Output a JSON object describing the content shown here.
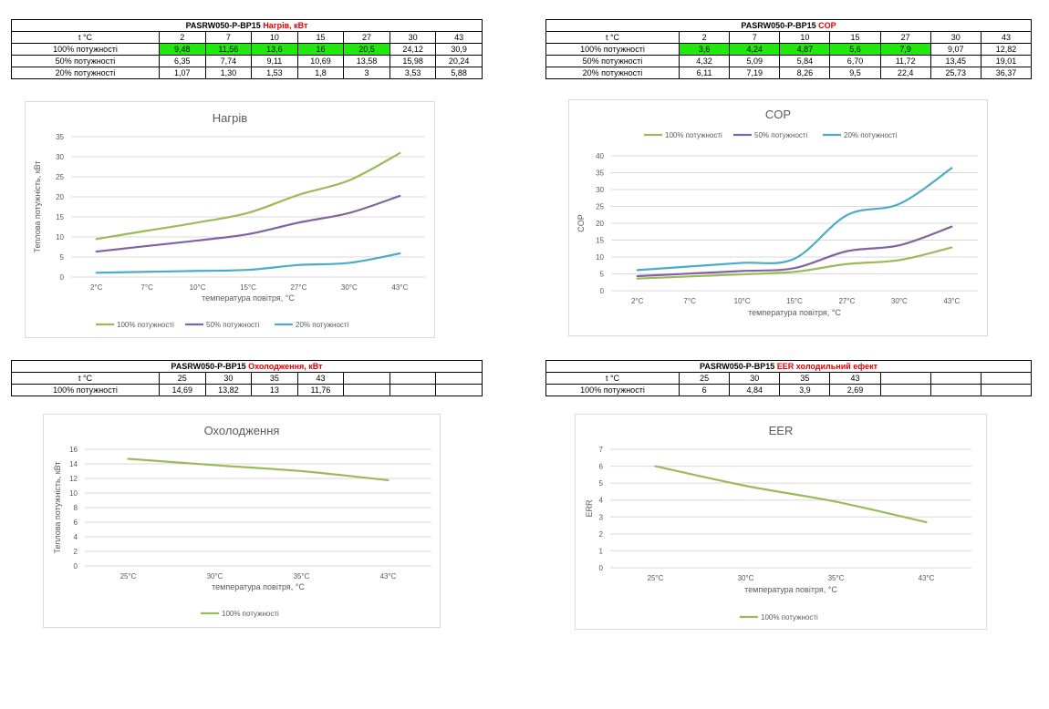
{
  "tables": [
    {
      "model": "PASRW050-P-BP15",
      "metric": "Нагрів, кВт",
      "header_label": "t °C",
      "columns": [
        "2",
        "7",
        "10",
        "15",
        "27",
        "30",
        "43"
      ],
      "rows": [
        {
          "label": "100% потужності",
          "values": [
            "9,48",
            "11,56",
            "13,6",
            "16",
            "20,5",
            "24,12",
            "30,9"
          ]
        },
        {
          "label": "50% потужності",
          "values": [
            "6,35",
            "7,74",
            "9,11",
            "10,69",
            "13,58",
            "15,98",
            "20,24"
          ]
        },
        {
          "label": "20% потужності",
          "values": [
            "1,07",
            "1,30",
            "1,53",
            "1,8",
            "3",
            "3,53",
            "5,88"
          ]
        }
      ],
      "highlight_color": "#22e80f"
    },
    {
      "model": "PASRW050-P-BP15",
      "metric": "COP",
      "header_label": "t °C",
      "columns": [
        "2",
        "7",
        "10",
        "15",
        "27",
        "30",
        "43"
      ],
      "rows": [
        {
          "label": "100% потужності",
          "values": [
            "3,6",
            "4,24",
            "4,87",
            "5,6",
            "7,9",
            "9,07",
            "12,82"
          ]
        },
        {
          "label": "50% потужності",
          "values": [
            "4,32",
            "5,09",
            "5,84",
            "6,70",
            "11,72",
            "13,45",
            "19,01"
          ]
        },
        {
          "label": "20% потужності",
          "values": [
            "6,11",
            "7,19",
            "8,26",
            "9,5",
            "22,4",
            "25,73",
            "36,37"
          ]
        }
      ],
      "highlight_color": "#22e80f"
    },
    {
      "model": "PASRW050-P-BP15",
      "metric": "Охолодження, кВт",
      "header_label": "t °C",
      "columns": [
        "25",
        "30",
        "35",
        "43",
        "",
        "",
        ""
      ],
      "rows": [
        {
          "label": "100% потужності",
          "values": [
            "14,69",
            "13,82",
            "13",
            "11,76",
            "",
            "",
            ""
          ]
        }
      ]
    },
    {
      "model": "PASRW050-P-BP15",
      "metric": "EER холодильний ефект",
      "header_label": "t °C",
      "columns": [
        "25",
        "30",
        "35",
        "43",
        "",
        "",
        ""
      ],
      "rows": [
        {
          "label": "100% потужності",
          "values": [
            "6",
            "4,84",
            "3,9",
            "2,69",
            "",
            "",
            ""
          ]
        }
      ]
    }
  ],
  "chart_data": [
    {
      "type": "line",
      "title": "Нагрів",
      "xlabel": "температура повітря, °С",
      "ylabel": "Теплова потужність, кВт",
      "categories": [
        "2°С",
        "7°С",
        "10°С",
        "15°С",
        "27°С",
        "30°С",
        "43°С"
      ],
      "ylim": [
        0,
        35
      ],
      "yticks": [
        0,
        5,
        10,
        15,
        20,
        25,
        30,
        35
      ],
      "grid": true,
      "legend_position": "bottom",
      "series": [
        {
          "name": "100% потужності",
          "color": "#9bbb59",
          "values": [
            9.48,
            11.56,
            13.6,
            16,
            20.5,
            24.12,
            30.9
          ]
        },
        {
          "name": "50% потужності",
          "color": "#8064a2",
          "values": [
            6.35,
            7.74,
            9.11,
            10.69,
            13.58,
            15.98,
            20.24
          ]
        },
        {
          "name": "20% потужності",
          "color": "#4bacc6",
          "values": [
            1.07,
            1.3,
            1.53,
            1.8,
            3,
            3.53,
            5.88
          ]
        }
      ]
    },
    {
      "type": "line",
      "title": "COP",
      "xlabel": "температура повітря, °С",
      "ylabel": "COP",
      "categories": [
        "2°С",
        "7°С",
        "10°С",
        "15°С",
        "27°С",
        "30°С",
        "43°С"
      ],
      "ylim": [
        0,
        40
      ],
      "yticks": [
        0,
        5,
        10,
        15,
        20,
        25,
        30,
        35,
        40
      ],
      "grid": true,
      "legend_position": "top",
      "series": [
        {
          "name": "100% потужності",
          "color": "#9bbb59",
          "values": [
            3.6,
            4.24,
            4.87,
            5.6,
            7.9,
            9.07,
            12.82
          ]
        },
        {
          "name": "50% потужності",
          "color": "#8064a2",
          "values": [
            4.32,
            5.09,
            5.84,
            6.7,
            11.72,
            13.45,
            19.01
          ]
        },
        {
          "name": "20% потужності",
          "color": "#4bacc6",
          "values": [
            6.11,
            7.19,
            8.26,
            9.5,
            22.4,
            25.73,
            36.37
          ]
        }
      ]
    },
    {
      "type": "line",
      "title": "Охолодження",
      "xlabel": "температура повітря, °С",
      "ylabel": "Теплова потужність, кВт",
      "categories": [
        "25°С",
        "30°С",
        "35°С",
        "43°С"
      ],
      "ylim": [
        0,
        16
      ],
      "yticks": [
        0,
        2,
        4,
        6,
        8,
        10,
        12,
        14,
        16
      ],
      "grid": true,
      "legend_position": "bottom",
      "series": [
        {
          "name": "100% потужності",
          "color": "#9bbb59",
          "values": [
            14.69,
            13.82,
            13,
            11.76
          ]
        }
      ]
    },
    {
      "type": "line",
      "title": "EER",
      "xlabel": "температура повітря, °С",
      "ylabel": "ERR",
      "categories": [
        "25°С",
        "30°С",
        "35°С",
        "43°С"
      ],
      "ylim": [
        0,
        7
      ],
      "yticks": [
        0,
        1,
        2,
        3,
        4,
        5,
        6,
        7
      ],
      "grid": true,
      "legend_position": "bottom",
      "series": [
        {
          "name": "100% потужності",
          "color": "#9bbb59",
          "values": [
            6,
            4.84,
            3.9,
            2.69
          ]
        }
      ]
    }
  ]
}
